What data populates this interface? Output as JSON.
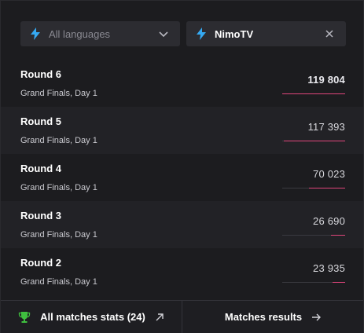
{
  "filters": {
    "language": {
      "label": "All languages",
      "icon": "bolt-icon"
    },
    "platform": {
      "label": "NimoTV",
      "icon": "bolt-icon"
    }
  },
  "rounds": [
    {
      "title": "Round 6",
      "subtitle": "Grand Finals, Day 1",
      "value": "119 804",
      "share": 1.0
    },
    {
      "title": "Round 5",
      "subtitle": "Grand Finals, Day 1",
      "value": "117 393",
      "share": 0.98
    },
    {
      "title": "Round 4",
      "subtitle": "Grand Finals, Day 1",
      "value": "70 023",
      "share": 0.58
    },
    {
      "title": "Round 3",
      "subtitle": "Grand Finals, Day 1",
      "value": "26 690",
      "share": 0.22
    },
    {
      "title": "Round 2",
      "subtitle": "Grand Finals, Day 1",
      "value": "23 935",
      "share": 0.2
    }
  ],
  "footer": {
    "stats_label": "All matches stats (24)",
    "results_label": "Matches results"
  },
  "colors": {
    "accent": "#e0457b",
    "bolt": "#35a9f2",
    "trophy": "#3fbf3f"
  }
}
